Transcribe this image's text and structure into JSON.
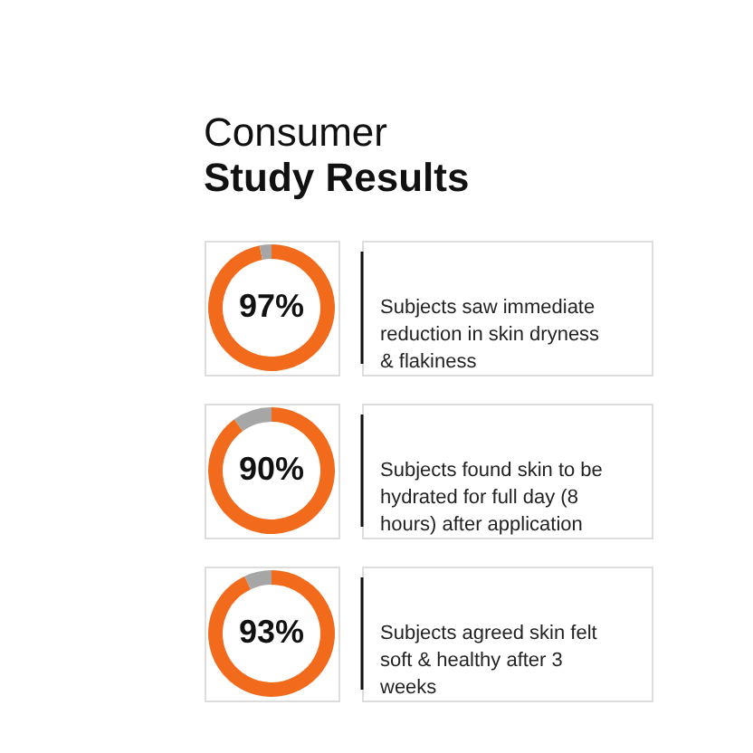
{
  "chart_data": [
    {
      "type": "donut",
      "title": "Consumer",
      "subtitle": "Study Results",
      "categories": [
        null,
        null
      ],
      "values": [
        97,
        3
      ],
      "colors": [
        "#f26a1b",
        "#a6a6a6"
      ],
      "value_labels": [
        "97%",
        null
      ],
      "annotations": [
        "Subjects saw immediate reduction in skin dryness & flakiness"
      ]
    },
    {
      "type": "donut",
      "categories": [
        null,
        null
      ],
      "values": [
        90,
        10
      ],
      "colors": [
        "#f26a1b",
        "#a6a6a6"
      ],
      "value_labels": [
        "90%",
        null
      ],
      "annotations": [
        "Subjects found skin to be hydrated for full day (8 hours) after application"
      ]
    },
    {
      "type": "donut",
      "categories": [
        null,
        null
      ],
      "values": [
        93,
        7
      ],
      "colors": [
        "#f26a1b",
        "#a6a6a6"
      ],
      "value_labels": [
        "93%",
        null
      ],
      "annotations": [
        "Subjects agreed skin felt soft & healthy after 3 weeks"
      ]
    }
  ]
}
